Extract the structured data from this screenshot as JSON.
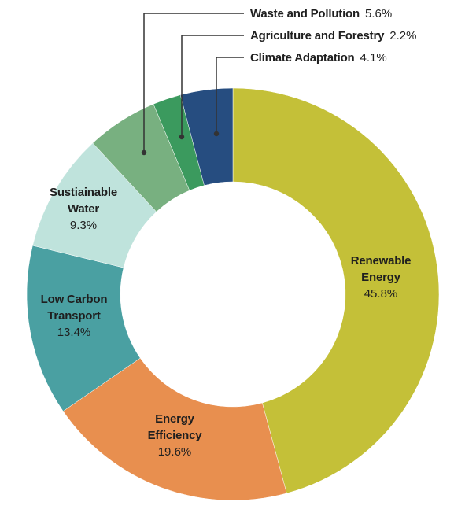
{
  "chart_data": {
    "type": "pie",
    "title": "",
    "slices": [
      {
        "id": "renewable-energy",
        "name_lines": [
          "Renewable",
          "Energy"
        ],
        "value": 45.8,
        "value_label": "45.8%",
        "color": "#c4c038"
      },
      {
        "id": "energy-efficiency",
        "name_lines": [
          "Energy",
          "Efficiency"
        ],
        "value": 19.6,
        "value_label": "19.6%",
        "color": "#e88f4f"
      },
      {
        "id": "low-carbon-transport",
        "name_lines": [
          "Low Carbon",
          "Transport"
        ],
        "value": 13.4,
        "value_label": "13.4%",
        "color": "#4aa0a2"
      },
      {
        "id": "sustainable-water",
        "name_lines": [
          "Sustiainable",
          "Water"
        ],
        "value": 9.3,
        "value_label": "9.3%",
        "color": "#bfe3dc"
      },
      {
        "id": "waste-and-pollution",
        "name_lines": [
          "Waste and Pollution"
        ],
        "value": 5.6,
        "value_label": "5.6%",
        "color": "#78b080"
      },
      {
        "id": "agriculture-and-forestry",
        "name_lines": [
          "Agriculture and Forestry"
        ],
        "value": 2.2,
        "value_label": "2.2%",
        "color": "#3b9a5e"
      },
      {
        "id": "climate-adaptation",
        "name_lines": [
          "Climate Adaptation"
        ],
        "value": 4.1,
        "value_label": "4.1%",
        "color": "#264d80"
      }
    ]
  }
}
